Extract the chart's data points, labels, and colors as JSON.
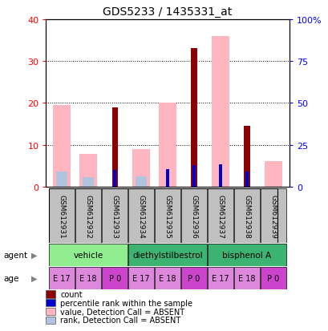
{
  "title": "GDS5233 / 1435331_at",
  "samples": [
    "GSM612931",
    "GSM612932",
    "GSM612933",
    "GSM612934",
    "GSM612935",
    "GSM612936",
    "GSM612937",
    "GSM612938",
    "GSM612939"
  ],
  "count_values": [
    0,
    0,
    19.0,
    0,
    0,
    33.0,
    0,
    14.5,
    0
  ],
  "percentile_values": [
    0,
    0,
    10.0,
    0,
    10.5,
    13.0,
    13.5,
    9.0,
    0
  ],
  "absent_value_values": [
    19.5,
    7.8,
    0,
    9.0,
    20.0,
    0,
    36.0,
    0,
    6.2
  ],
  "absent_rank_values": [
    9.0,
    5.5,
    0,
    6.2,
    0,
    0,
    0,
    0,
    0
  ],
  "agent_labels": [
    "vehicle",
    "diethylstilbestrol",
    "bisphenol A"
  ],
  "agent_ranges": [
    [
      0,
      3
    ],
    [
      3,
      6
    ],
    [
      6,
      9
    ]
  ],
  "agent_colors": [
    "#90EE90",
    "#3CB371",
    "#3CB371"
  ],
  "ages": [
    "E 17",
    "E 18",
    "P 0",
    "E 17",
    "E 18",
    "P 0",
    "E 17",
    "E 18",
    "P 0"
  ],
  "ylim_left": [
    0,
    40
  ],
  "ylim_right": [
    0,
    100
  ],
  "yticks_left": [
    0,
    10,
    20,
    30,
    40
  ],
  "yticks_right": [
    0,
    25,
    50,
    75,
    100
  ],
  "ytick_labels_right": [
    "0",
    "25",
    "50",
    "75",
    "100%"
  ],
  "color_count": "#8B0000",
  "color_percentile": "#0000CD",
  "color_absent_value": "#FFB6C1",
  "color_absent_rank": "#B0C4DE",
  "color_sample_bg": "#C0C0C0",
  "color_age_light": "#DD88DD",
  "color_age_dark": "#CC44CC",
  "legend_items": [
    {
      "color": "#8B0000",
      "label": "count"
    },
    {
      "color": "#0000CD",
      "label": "percentile rank within the sample"
    },
    {
      "color": "#FFB6C1",
      "label": "value, Detection Call = ABSENT"
    },
    {
      "color": "#B0C4DE",
      "label": "rank, Detection Call = ABSENT"
    }
  ]
}
